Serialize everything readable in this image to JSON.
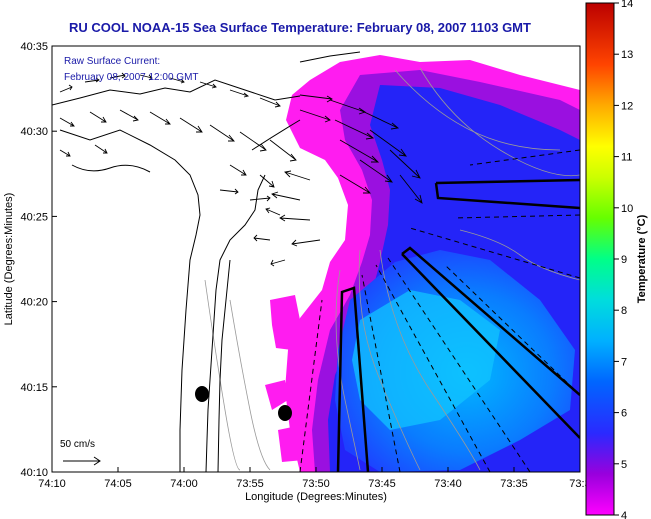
{
  "header": {
    "title": "RU COOL  NOAA-15  Sea Surface Temperature:  February 08, 2007 1103 GMT"
  },
  "annotation": {
    "line1": "Raw Surface Current:",
    "line2": "February 08, 2007 12:00 GMT"
  },
  "scale_bar": {
    "label": "50 cm/s"
  },
  "axes": {
    "xlabel": "Longitude (Degrees:Minutes)",
    "ylabel": "Latitude (Degrees:Minutes)",
    "xticks": [
      "74:10",
      "74:05",
      "74:00",
      "73:55",
      "73:50",
      "73:45",
      "73:40",
      "73:35",
      "73:3"
    ],
    "yticks": [
      "40:35",
      "40:30",
      "40:25",
      "40:20",
      "40:15",
      "40:10"
    ]
  },
  "colorbar": {
    "label": "Temperature (°C)",
    "ticks": [
      "14",
      "13",
      "12",
      "11",
      "10",
      "9",
      "8",
      "7",
      "6",
      "5",
      "4"
    ],
    "min": 4,
    "max": 14,
    "colors": [
      "#ff00ff",
      "#8800cc",
      "#2020ff",
      "#00aaff",
      "#00dddd",
      "#00ff88",
      "#88ff00",
      "#ffff00",
      "#ffaa00",
      "#ff4400",
      "#cc0000"
    ]
  }
}
